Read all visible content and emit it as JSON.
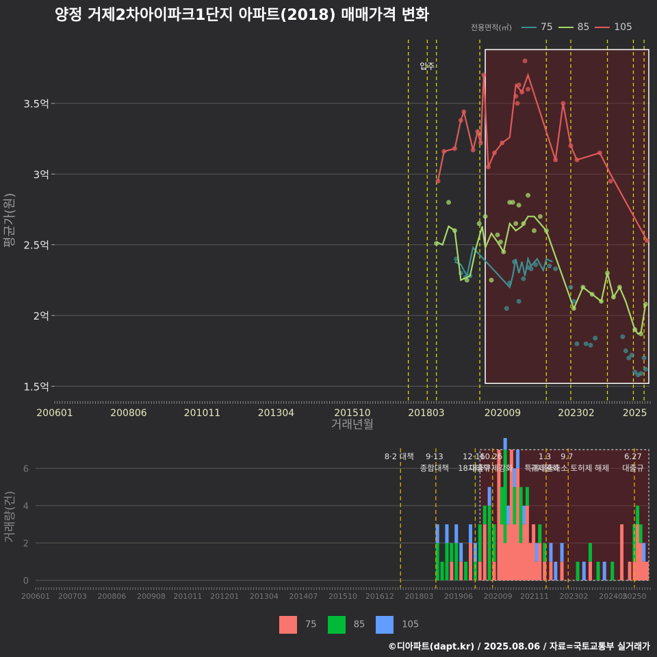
{
  "title": "양정 거제2차아이파크1단지 아파트(2018) 매매가격 변화",
  "footer": "©디아파트(dapt.kr) / 2025.08.06 / 자료=국토교통부 실거래가",
  "colors": {
    "s75": "#3f8f93",
    "s85": "#a6d96a",
    "s105": "#e05a5a",
    "b75": "#f8766d",
    "b85": "#00ba38",
    "b105": "#619cff",
    "bg": "#2b2b2d",
    "grid": "#5a5a5a",
    "vline": "#e6e600",
    "vline2": "#e6a800"
  },
  "legend_top": {
    "label": "전용면적(㎡)",
    "items": [
      "75",
      "85",
      "105"
    ]
  },
  "legend_bottom": {
    "items": [
      "75",
      "85",
      "105"
    ]
  },
  "chart_data": [
    {
      "type": "line",
      "ylabel": "평균가(원)",
      "xlabel": "거래년월",
      "ylim": [
        1.4,
        3.95
      ],
      "xlim": [
        2006.0,
        2025.5
      ],
      "yticks": [
        {
          "v": 1.5,
          "label": "1.5억"
        },
        {
          "v": 2.0,
          "label": "2억"
        },
        {
          "v": 2.5,
          "label": "2.5억"
        },
        {
          "v": 3.0,
          "label": "3억"
        },
        {
          "v": 3.5,
          "label": "3.5억"
        }
      ],
      "xticks": [
        {
          "v": 2006.0,
          "label": "200601"
        },
        {
          "v": 2008.42,
          "label": "200806"
        },
        {
          "v": 2010.83,
          "label": "201011"
        },
        {
          "v": 2013.25,
          "label": "201304"
        },
        {
          "v": 2015.75,
          "label": "201510"
        },
        {
          "v": 2018.17,
          "label": "201803"
        },
        {
          "v": 2020.67,
          "label": "202009"
        },
        {
          "v": 2023.08,
          "label": "202302"
        },
        {
          "v": 2025.0,
          "label": "2025"
        }
      ],
      "annotation": {
        "text": "입주",
        "x": 2018.2
      },
      "vlines": [
        2017.58,
        2018.2,
        2018.5,
        2019.92,
        2022.1,
        2022.9,
        2024.1,
        2024.95,
        2025.3
      ],
      "highlight": {
        "x0": 2020.1,
        "x1": 2025.5,
        "y0": 1.52,
        "y1": 3.88
      },
      "series": [
        {
          "name": "75",
          "color": "#3f8f93",
          "x": [
            2019.1,
            2019.3,
            2019.5,
            2019.7,
            2020.9,
            2021.0,
            2021.1,
            2021.2,
            2021.3,
            2021.4,
            2021.5,
            2021.6,
            2021.8,
            2022.0,
            2022.1,
            2022.3
          ],
          "y": [
            2.38,
            2.36,
            2.28,
            2.48,
            2.2,
            2.28,
            2.4,
            2.3,
            2.38,
            2.28,
            2.4,
            2.35,
            2.4,
            2.32,
            2.4,
            2.38
          ],
          "points_x": [
            2019.15,
            2019.3,
            2019.45,
            2019.6,
            2020.8,
            2020.9,
            2021.05,
            2021.2,
            2021.35,
            2021.5,
            2021.6,
            2021.75,
            2022.2,
            2022.4,
            2022.9,
            2023.0,
            2023.1,
            2023.4,
            2023.55,
            2023.7,
            2024.6,
            2024.7,
            2024.8,
            2024.9,
            2025.0,
            2025.1,
            2025.2,
            2025.3,
            2025.35
          ],
          "points_y": [
            2.4,
            2.3,
            2.27,
            2.28,
            2.05,
            2.23,
            2.38,
            2.1,
            2.26,
            2.34,
            2.33,
            2.36,
            2.35,
            2.33,
            2.2,
            2.1,
            1.8,
            1.8,
            1.79,
            1.84,
            1.85,
            1.75,
            1.7,
            1.72,
            1.6,
            1.58,
            1.59,
            1.7,
            1.62
          ]
        },
        {
          "name": "85",
          "color": "#a6d96a",
          "x": [
            2018.5,
            2018.7,
            2018.9,
            2019.1,
            2019.3,
            2019.6,
            2019.8,
            2020.0,
            2020.1,
            2020.3,
            2020.5,
            2020.7,
            2020.9,
            2021.1,
            2021.3,
            2021.5,
            2021.7,
            2022.1,
            2023.0,
            2023.3,
            2023.6,
            2023.9,
            2024.1,
            2024.3,
            2024.5,
            2024.7,
            2025.0,
            2025.1,
            2025.2,
            2025.35
          ],
          "y": [
            2.52,
            2.5,
            2.63,
            2.6,
            2.25,
            2.28,
            2.48,
            2.63,
            2.48,
            2.58,
            2.52,
            2.45,
            2.65,
            2.6,
            2.63,
            2.7,
            2.7,
            2.6,
            2.05,
            2.2,
            2.15,
            2.1,
            2.3,
            2.13,
            2.2,
            2.1,
            1.9,
            1.87,
            1.88,
            2.08
          ],
          "points_x": [
            2018.5,
            2018.9,
            2019.1,
            2019.5,
            2019.9,
            2020.1,
            2020.3,
            2020.5,
            2020.6,
            2020.7,
            2020.9,
            2021.0,
            2021.1,
            2021.2,
            2021.35,
            2021.5,
            2021.7,
            2021.9,
            2022.1,
            2023.0,
            2023.3,
            2023.6,
            2023.9,
            2024.1,
            2024.3,
            2024.5,
            2025.0,
            2025.2,
            2025.35
          ],
          "points_y": [
            2.51,
            2.8,
            2.6,
            2.25,
            2.65,
            2.7,
            2.25,
            2.57,
            2.52,
            2.45,
            2.8,
            2.8,
            2.65,
            2.78,
            2.65,
            2.85,
            2.6,
            2.7,
            2.6,
            2.05,
            2.2,
            2.15,
            2.1,
            2.3,
            2.13,
            2.2,
            1.9,
            1.87,
            2.08
          ]
        },
        {
          "name": "105",
          "color": "#e05a5a",
          "x": [
            2018.55,
            2018.75,
            2019.1,
            2019.3,
            2019.4,
            2019.7,
            2019.85,
            2019.95,
            2020.05,
            2020.2,
            2020.4,
            2020.65,
            2020.9,
            2021.1,
            2021.3,
            2021.5,
            2022.4,
            2022.65,
            2022.9,
            2023.1,
            2023.85,
            2024.2,
            2025.4
          ],
          "y": [
            2.95,
            3.16,
            3.18,
            3.38,
            3.44,
            3.17,
            3.3,
            3.22,
            3.7,
            3.05,
            3.15,
            3.22,
            3.26,
            3.63,
            3.58,
            3.7,
            3.1,
            3.5,
            3.2,
            3.1,
            3.15,
            3.0,
            2.53
          ],
          "points_x": [
            2018.55,
            2018.75,
            2019.1,
            2019.3,
            2019.4,
            2019.7,
            2019.85,
            2019.95,
            2020.05,
            2020.2,
            2020.4,
            2020.65,
            2021.1,
            2021.15,
            2021.2,
            2021.3,
            2021.4,
            2021.5,
            2022.4,
            2022.65,
            2022.9,
            2023.1,
            2023.85,
            2024.2,
            2025.4
          ],
          "points_y": [
            2.95,
            3.16,
            3.18,
            3.38,
            3.44,
            3.17,
            3.3,
            3.22,
            3.7,
            3.05,
            3.15,
            3.22,
            3.55,
            3.5,
            3.63,
            3.58,
            3.8,
            3.6,
            3.1,
            3.5,
            3.2,
            3.1,
            3.15,
            2.95,
            2.53
          ]
        }
      ]
    },
    {
      "type": "bar",
      "ylabel": "거래량(건)",
      "ylim": [
        0,
        7
      ],
      "xlim": [
        2006.0,
        2025.5
      ],
      "yticks": [
        0,
        2,
        4,
        6
      ],
      "xticks": [
        {
          "v": 2006.0,
          "label": "200601"
        },
        {
          "v": 2007.17,
          "label": "200703"
        },
        {
          "v": 2008.42,
          "label": "200806"
        },
        {
          "v": 2009.67,
          "label": "200908"
        },
        {
          "v": 2010.83,
          "label": "201011"
        },
        {
          "v": 2012.0,
          "label": "201201"
        },
        {
          "v": 2013.25,
          "label": "201304"
        },
        {
          "v": 2014.5,
          "label": "201407"
        },
        {
          "v": 2015.75,
          "label": "201510"
        },
        {
          "v": 2016.92,
          "label": "201612"
        },
        {
          "v": 2018.17,
          "label": "201803"
        },
        {
          "v": 2019.42,
          "label": "201906"
        },
        {
          "v": 2020.67,
          "label": "202009"
        },
        {
          "v": 2021.83,
          "label": "202111"
        },
        {
          "v": 2023.08,
          "label": "202302"
        },
        {
          "v": 2024.33,
          "label": "202405"
        },
        {
          "v": 2025.0,
          "label": "20250"
        }
      ],
      "events": [
        {
          "x": 2017.58,
          "labels": [
            "8·2 대책"
          ]
        },
        {
          "x": 2018.7,
          "labels": [
            "9·13",
            "종합대책"
          ]
        },
        {
          "x": 2019.95,
          "labels": [
            "12·16",
            "18차대책"
          ]
        },
        {
          "x": 2020.5,
          "labels": [
            "10.26",
            "대출규제강화"
          ]
        },
        {
          "x": 2022.2,
          "labels": [
            "1.3",
            "규제완화"
          ]
        },
        {
          "x": 2022.9,
          "labels": [
            "9.7",
            "특례대출축소 토허제 해제"
          ]
        },
        {
          "x": 2025.0,
          "labels": [
            "6.27",
            "대출규"
          ]
        }
      ],
      "highlight": {
        "x0": 2020.1,
        "x1": 2025.5
      },
      "bars": [
        {
          "x": 2018.75,
          "v75": 0,
          "v85": 2,
          "v105": 1
        },
        {
          "x": 2018.9,
          "v75": 0,
          "v85": 1,
          "v105": 0
        },
        {
          "x": 2019.05,
          "v75": 0,
          "v85": 2,
          "v105": 1
        },
        {
          "x": 2019.2,
          "v75": 1,
          "v85": 1,
          "v105": 0
        },
        {
          "x": 2019.35,
          "v75": 0,
          "v85": 2,
          "v105": 1
        },
        {
          "x": 2019.5,
          "v75": 1,
          "v85": 0,
          "v105": 1
        },
        {
          "x": 2019.65,
          "v75": 0,
          "v85": 1,
          "v105": 0
        },
        {
          "x": 2019.8,
          "v75": 2,
          "v85": 0,
          "v105": 1
        },
        {
          "x": 2019.95,
          "v75": 0,
          "v85": 1,
          "v105": 1
        },
        {
          "x": 2020.1,
          "v75": 1,
          "v85": 2,
          "v105": 0
        },
        {
          "x": 2020.25,
          "v75": 3,
          "v85": 1,
          "v105": 0
        },
        {
          "x": 2020.4,
          "v75": 0,
          "v85": 4,
          "v105": 1
        },
        {
          "x": 2020.55,
          "v75": 1,
          "v85": 2,
          "v105": 0
        },
        {
          "x": 2020.7,
          "v75": 7,
          "v85": 0,
          "v105": 0
        },
        {
          "x": 2020.8,
          "v75": 3,
          "v85": 2,
          "v105": 0
        },
        {
          "x": 2020.9,
          "v75": 2,
          "v85": 5,
          "v105": 1
        },
        {
          "x": 2021.0,
          "v75": 3,
          "v85": 0,
          "v105": 1
        },
        {
          "x": 2021.1,
          "v75": 7,
          "v85": 0,
          "v105": 0
        },
        {
          "x": 2021.2,
          "v75": 3,
          "v85": 2,
          "v105": 1
        },
        {
          "x": 2021.3,
          "v75": 6,
          "v85": 0,
          "v105": 1
        },
        {
          "x": 2021.4,
          "v75": 2,
          "v85": 3,
          "v105": 0
        },
        {
          "x": 2021.5,
          "v75": 3,
          "v85": 0,
          "v105": 1
        },
        {
          "x": 2021.6,
          "v75": 4,
          "v85": 1,
          "v105": 0
        },
        {
          "x": 2021.7,
          "v75": 2,
          "v85": 0,
          "v105": 0
        },
        {
          "x": 2021.8,
          "v75": 3,
          "v85": 0,
          "v105": 0
        },
        {
          "x": 2021.9,
          "v75": 1,
          "v85": 0,
          "v105": 1
        },
        {
          "x": 2022.0,
          "v75": 2,
          "v85": 1,
          "v105": 0
        },
        {
          "x": 2022.15,
          "v75": 1,
          "v85": 1,
          "v105": 0
        },
        {
          "x": 2022.35,
          "v75": 1,
          "v85": 0,
          "v105": 1
        },
        {
          "x": 2022.5,
          "v75": 0,
          "v85": 0,
          "v105": 1
        },
        {
          "x": 2022.7,
          "v75": 1,
          "v85": 0,
          "v105": 1
        },
        {
          "x": 2023.2,
          "v75": 0,
          "v85": 1,
          "v105": 0
        },
        {
          "x": 2023.4,
          "v75": 0,
          "v85": 0,
          "v105": 1
        },
        {
          "x": 2023.6,
          "v75": 1,
          "v85": 1,
          "v105": 0
        },
        {
          "x": 2023.85,
          "v75": 0,
          "v85": 1,
          "v105": 0
        },
        {
          "x": 2024.05,
          "v75": 0,
          "v85": 0,
          "v105": 1
        },
        {
          "x": 2024.3,
          "v75": 0,
          "v85": 1,
          "v105": 0
        },
        {
          "x": 2024.6,
          "v75": 3,
          "v85": 0,
          "v105": 0
        },
        {
          "x": 2024.85,
          "v75": 1,
          "v85": 0,
          "v105": 0
        },
        {
          "x": 2025.0,
          "v75": 1,
          "v85": 2,
          "v105": 0
        },
        {
          "x": 2025.1,
          "v75": 3,
          "v85": 1,
          "v105": 0
        },
        {
          "x": 2025.2,
          "v75": 2,
          "v85": 1,
          "v105": 0
        },
        {
          "x": 2025.3,
          "v75": 1,
          "v85": 0,
          "v105": 1
        },
        {
          "x": 2025.4,
          "v75": 1,
          "v85": 0,
          "v105": 0
        }
      ]
    }
  ]
}
